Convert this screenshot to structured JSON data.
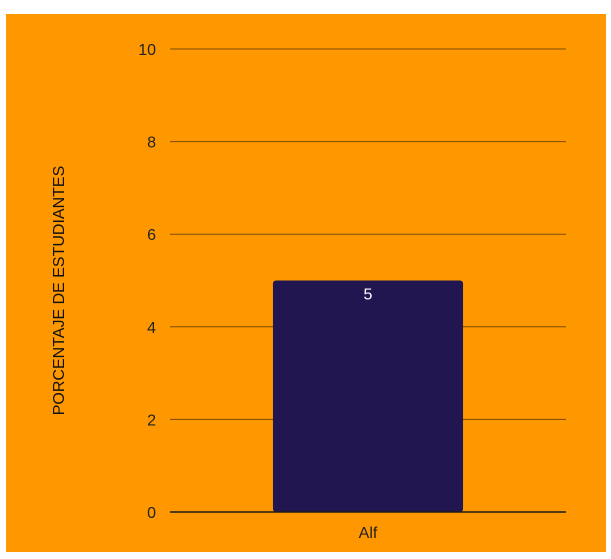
{
  "colors": {
    "background": "#FF9800",
    "bar": "#211650",
    "gridline": "#7a4a00",
    "axis_line": "#1a1a1a"
  },
  "chart_data": {
    "type": "bar",
    "title": "",
    "xlabel": "",
    "ylabel": "PORCENTAJE DE ESTUDIANTES",
    "categories": [
      "Alf"
    ],
    "values": [
      5
    ],
    "data_labels": [
      "5"
    ],
    "yticks": [
      0,
      2,
      4,
      6,
      8,
      10
    ],
    "ylim": [
      0,
      10
    ],
    "grid": true,
    "legend": "none"
  }
}
